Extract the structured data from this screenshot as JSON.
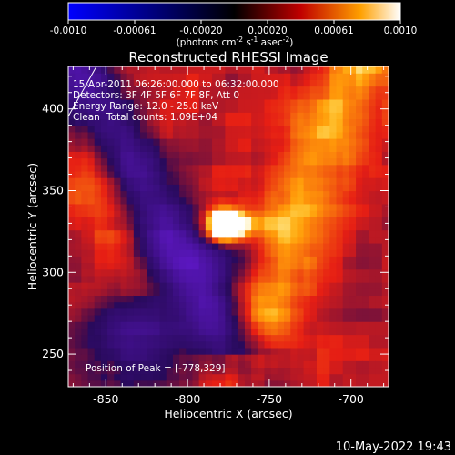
{
  "chart_data": {
    "type": "heatmap",
    "title": "Reconstructed RHESSI Image",
    "xlabel": "Heliocentric X (arcsec)",
    "ylabel": "Heliocentric Y (arcsec)",
    "xlim": [
      -873,
      -677
    ],
    "ylim": [
      230,
      426
    ],
    "xticks": [
      -850,
      -800,
      -750,
      -700
    ],
    "yticks": [
      250,
      300,
      350,
      400
    ],
    "colorbar": {
      "range": [
        -0.001,
        0.001
      ],
      "ticks": [
        "-0.0010",
        "-0.00061",
        "-0.00020",
        "0.00020",
        "0.00061",
        "0.0010"
      ],
      "label_main": "(photons cm",
      "label_sup1": "-2",
      "label_mid": " s",
      "label_sup2": "-1",
      "label_mid2": " asec",
      "label_sup3": "-2",
      "label_end": ")"
    },
    "annotations": {
      "time": "15-Apr-2011 06:26:00.000 to 06:32:00.000",
      "detectors": "Detectors: 3F 4F 5F 6F 7F 8F, Att 0",
      "energy": "Energy Range: 12.0 - 25.0 keV",
      "clean": "Clean",
      "counts": "Total counts: 1.09E+04",
      "peak": "Position of Peak = [-778,329]"
    },
    "peak": [
      -778,
      329
    ],
    "footer_date": "10-May-2022 19:43"
  },
  "colors": {
    "background": "#000000",
    "text": "#ffffff"
  }
}
